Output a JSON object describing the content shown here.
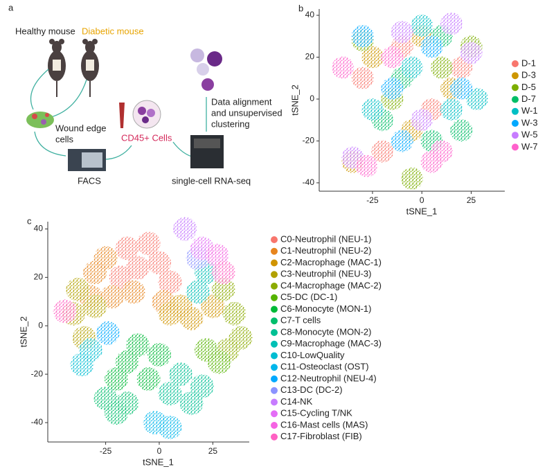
{
  "diagram": {
    "label": "a",
    "healthy": "Healthy mouse",
    "diabetic": "Diabetic mouse",
    "wound": [
      "Wound edge",
      "cells"
    ],
    "facs": "FACS",
    "cd45": "CD45+ Cells",
    "seq": "single-cell RNA-seq",
    "align": [
      "Data alignment",
      "and unsupervised",
      "clustering"
    ]
  },
  "chart_data": [
    {
      "type": "scatter",
      "label": "b",
      "x_label": "tSNE_1",
      "y_label": "tSNE_2",
      "xlim": [
        -52,
        42
      ],
      "ylim": [
        -44,
        43
      ],
      "xticks": [
        -25,
        0,
        25
      ],
      "yticks": [
        40,
        20,
        0,
        -20,
        -40
      ],
      "series": [
        {
          "name": "D-1",
          "color": "#F8766D",
          "x": [
            -30,
            -10,
            5,
            -20,
            20
          ],
          "values": [
            10,
            25,
            -5,
            -25,
            15
          ]
        },
        {
          "name": "D-3",
          "color": "#CD9600",
          "x": [
            -25,
            0,
            15,
            -35,
            -5
          ],
          "values": [
            20,
            30,
            5,
            -30,
            -15
          ]
        },
        {
          "name": "D-5",
          "color": "#7CAE00",
          "x": [
            -15,
            10,
            -30,
            25,
            -5
          ],
          "values": [
            0,
            15,
            28,
            25,
            -38
          ]
        },
        {
          "name": "D-7",
          "color": "#00BE67",
          "x": [
            -20,
            5,
            20,
            -10,
            10
          ],
          "values": [
            -10,
            -20,
            -15,
            10,
            30
          ]
        },
        {
          "name": "W-1",
          "color": "#00BFC4",
          "x": [
            -5,
            15,
            -25,
            0,
            28
          ],
          "values": [
            15,
            -5,
            -5,
            35,
            0
          ]
        },
        {
          "name": "W-3",
          "color": "#00A9FF",
          "x": [
            -30,
            5,
            -10,
            20,
            -15
          ],
          "values": [
            30,
            25,
            -20,
            5,
            5
          ]
        },
        {
          "name": "W-5",
          "color": "#C77CFF",
          "x": [
            -35,
            -10,
            15,
            25,
            0
          ],
          "values": [
            -28,
            32,
            36,
            22,
            -10
          ]
        },
        {
          "name": "W-7",
          "color": "#FF61CC",
          "x": [
            -28,
            10,
            -15,
            -40,
            5
          ],
          "values": [
            -32,
            -25,
            20,
            15,
            -30
          ]
        }
      ]
    },
    {
      "type": "scatter",
      "label": "c",
      "x_label": "tSNE_1",
      "y_label": "tSNE_2",
      "xlim": [
        -52,
        42
      ],
      "ylim": [
        -48,
        43
      ],
      "xticks": [
        -25,
        0,
        25
      ],
      "yticks": [
        40,
        20,
        0,
        -20,
        -40
      ],
      "series": [
        {
          "name": "C0-Neutrophil (NEU-1)",
          "color": "#F8766D",
          "x": [
            -15,
            -5,
            -10,
            0,
            5,
            -18
          ],
          "values": [
            32,
            34,
            24,
            26,
            18,
            20
          ]
        },
        {
          "name": "C1-Neutrophil (NEU-2)",
          "color": "#E7851E",
          "x": [
            -30,
            -25,
            -22,
            -12,
            2,
            -32
          ],
          "values": [
            22,
            28,
            12,
            14,
            10,
            12
          ]
        },
        {
          "name": "C2-Macrophage (MAC-1)",
          "color": "#D09400",
          "x": [
            5,
            15,
            25,
            10
          ],
          "values": [
            5,
            3,
            8,
            8
          ]
        },
        {
          "name": "C3-Neutrophil (NEU-3)",
          "color": "#B2A100",
          "x": [
            -40,
            -35,
            -30,
            -38
          ],
          "values": [
            5,
            -5,
            8,
            15
          ]
        },
        {
          "name": "C4-Macrophage (MAC-2)",
          "color": "#8BAB00",
          "x": [
            35,
            38,
            30,
            32
          ],
          "values": [
            5,
            -5,
            15,
            -10
          ]
        },
        {
          "name": "C5-DC (DC-1)",
          "color": "#55B400",
          "x": [
            22,
            28
          ],
          "values": [
            -10,
            -15
          ]
        },
        {
          "name": "C6-Monocyte (MON-1)",
          "color": "#00BA38",
          "x": [
            -15,
            -5,
            -10,
            -20,
            0
          ],
          "values": [
            -15,
            -22,
            -8,
            -22,
            -12
          ]
        },
        {
          "name": "C7-T cells",
          "color": "#00BE6C",
          "x": [
            -25,
            -20,
            -15
          ],
          "values": [
            -30,
            -36,
            -32
          ]
        },
        {
          "name": "C8-Monocyte (MON-2)",
          "color": "#00C094",
          "x": [
            10,
            20,
            15,
            5
          ],
          "values": [
            -20,
            -25,
            -32,
            -28
          ]
        },
        {
          "name": "C9-Macrophage (MAC-3)",
          "color": "#00C0B5",
          "x": [
            22,
            18
          ],
          "values": [
            22,
            14
          ]
        },
        {
          "name": "C10-LowQuality",
          "color": "#00BDD2",
          "x": [
            -32,
            -36
          ],
          "values": [
            -10,
            -16
          ]
        },
        {
          "name": "C11-Osteoclast (OST)",
          "color": "#00B6EB",
          "x": [
            5,
            -2
          ],
          "values": [
            -42,
            -40
          ]
        },
        {
          "name": "C12-Neutrophil (NEU-4)",
          "color": "#00A9FF",
          "x": [
            -24
          ],
          "values": [
            -3
          ]
        },
        {
          "name": "C13-DC (DC-2)",
          "color": "#8B93FF",
          "x": [
            18
          ],
          "values": [
            28
          ]
        },
        {
          "name": "C14-NK",
          "color": "#C77CFF",
          "x": [
            12
          ],
          "values": [
            40
          ]
        },
        {
          "name": "C15-Cycling T/NK",
          "color": "#E46DF6",
          "x": [
            20
          ],
          "values": [
            32
          ]
        },
        {
          "name": "C16-Mast cells (MAS)",
          "color": "#F564E3",
          "x": [
            27
          ],
          "values": [
            29
          ]
        },
        {
          "name": "C17-Fibroblast (FIB)",
          "color": "#FF61C3",
          "x": [
            -44,
            30
          ],
          "values": [
            6,
            22
          ]
        }
      ]
    }
  ]
}
